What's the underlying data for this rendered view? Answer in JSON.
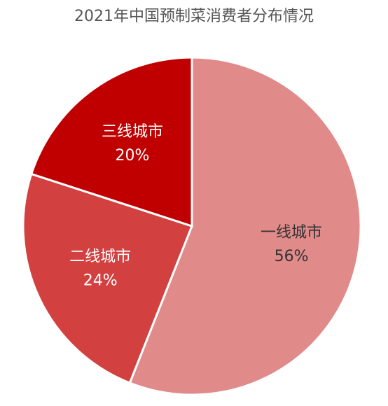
{
  "chart_data": {
    "type": "pie",
    "title": "2021年中国预制菜消费者分布情况",
    "categories": [
      "一线城市",
      "二线城市",
      "三线城市"
    ],
    "values": [
      56,
      24,
      20
    ],
    "value_labels": [
      "56%",
      "24%",
      "20%"
    ],
    "colors": [
      "#e08a8a",
      "#d24040",
      "#c00000"
    ],
    "label_colors": [
      "#333333",
      "#ffffff",
      "#ffffff"
    ]
  }
}
